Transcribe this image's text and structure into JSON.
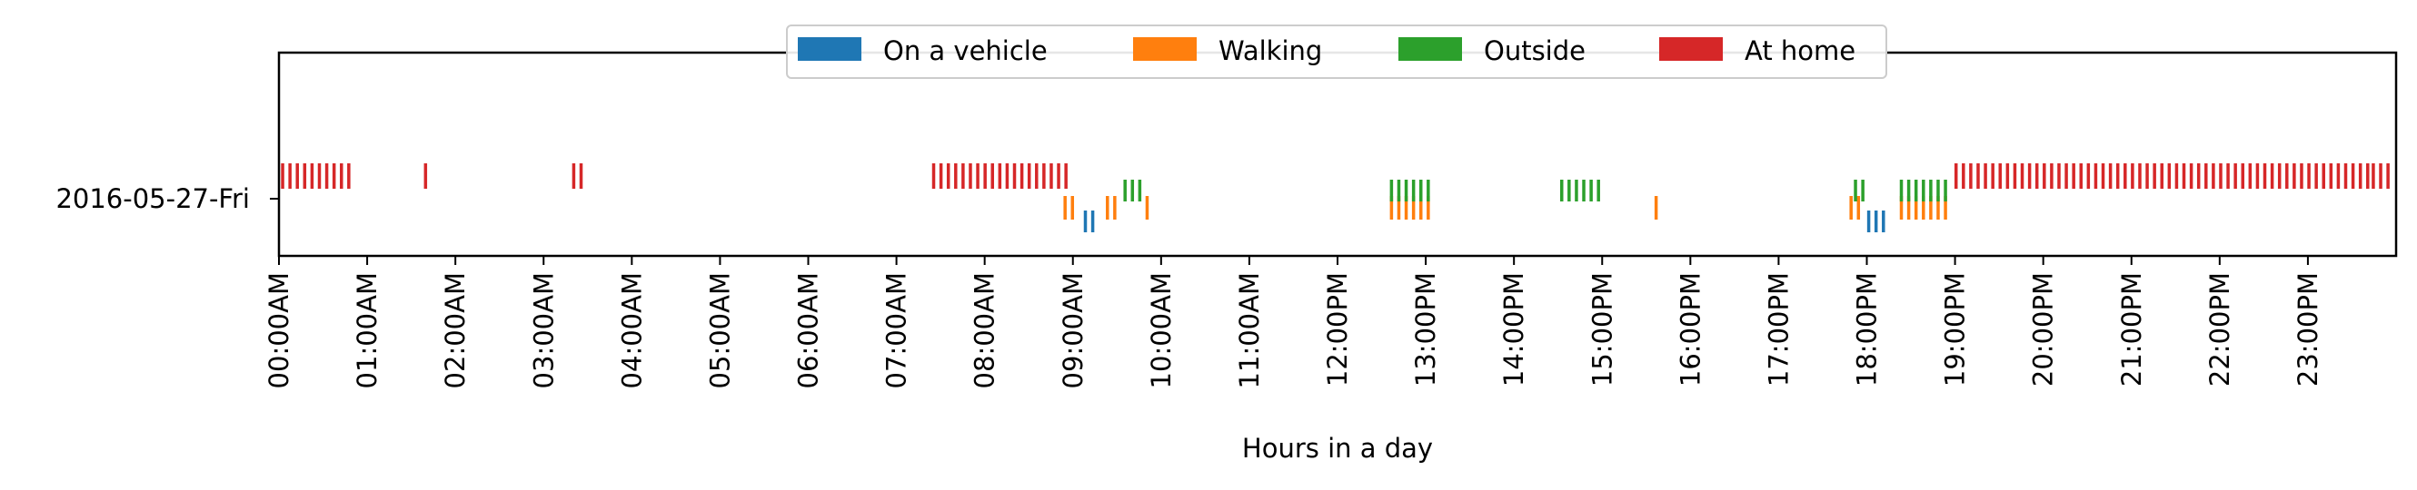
{
  "chart_data": {
    "type": "timeline",
    "title": "",
    "xlabel": "Hours in a day",
    "ylabel": "",
    "xlim": [
      0,
      24
    ],
    "y_category": "2016-05-27-Fri",
    "x_ticks": [
      0,
      1,
      2,
      3,
      4,
      5,
      6,
      7,
      8,
      9,
      10,
      11,
      12,
      13,
      14,
      15,
      16,
      17,
      18,
      19,
      20,
      21,
      22,
      23
    ],
    "x_tick_labels": [
      "00:00AM",
      "01:00AM",
      "02:00AM",
      "03:00AM",
      "04:00AM",
      "05:00AM",
      "06:00AM",
      "07:00AM",
      "08:00AM",
      "09:00AM",
      "10:00AM",
      "11:00AM",
      "12:00PM",
      "13:00PM",
      "14:00PM",
      "15:00PM",
      "16:00PM",
      "17:00PM",
      "18:00PM",
      "19:00PM",
      "20:00PM",
      "21:00PM",
      "22:00PM",
      "23:00PM"
    ],
    "legend_position": "top-center",
    "grid": false,
    "series": [
      {
        "name": "On a vehicle",
        "color": "#1f77b4",
        "intervals": [
          [
            9.1,
            9.27
          ],
          [
            17.98,
            18.27
          ]
        ]
      },
      {
        "name": "Walking",
        "color": "#ff7f0e",
        "intervals": [
          [
            8.87,
            9.05
          ],
          [
            9.35,
            9.55
          ],
          [
            9.8,
            9.85
          ],
          [
            12.57,
            13.05
          ],
          [
            15.57,
            15.62
          ],
          [
            17.78,
            17.95
          ],
          [
            18.35,
            18.97
          ]
        ]
      },
      {
        "name": "Outside",
        "color": "#2ca02c",
        "intervals": [
          [
            9.55,
            9.8
          ],
          [
            12.57,
            13.05
          ],
          [
            14.5,
            14.97
          ],
          [
            17.83,
            18.0
          ],
          [
            18.35,
            18.92
          ]
        ]
      },
      {
        "name": "At home",
        "color": "#d62728",
        "intervals": [
          [
            0.0,
            0.82
          ],
          [
            1.62,
            1.72
          ],
          [
            3.3,
            3.48
          ],
          [
            7.38,
            8.98
          ],
          [
            18.97,
            23.7
          ],
          [
            23.7,
            24.0
          ]
        ]
      }
    ]
  }
}
